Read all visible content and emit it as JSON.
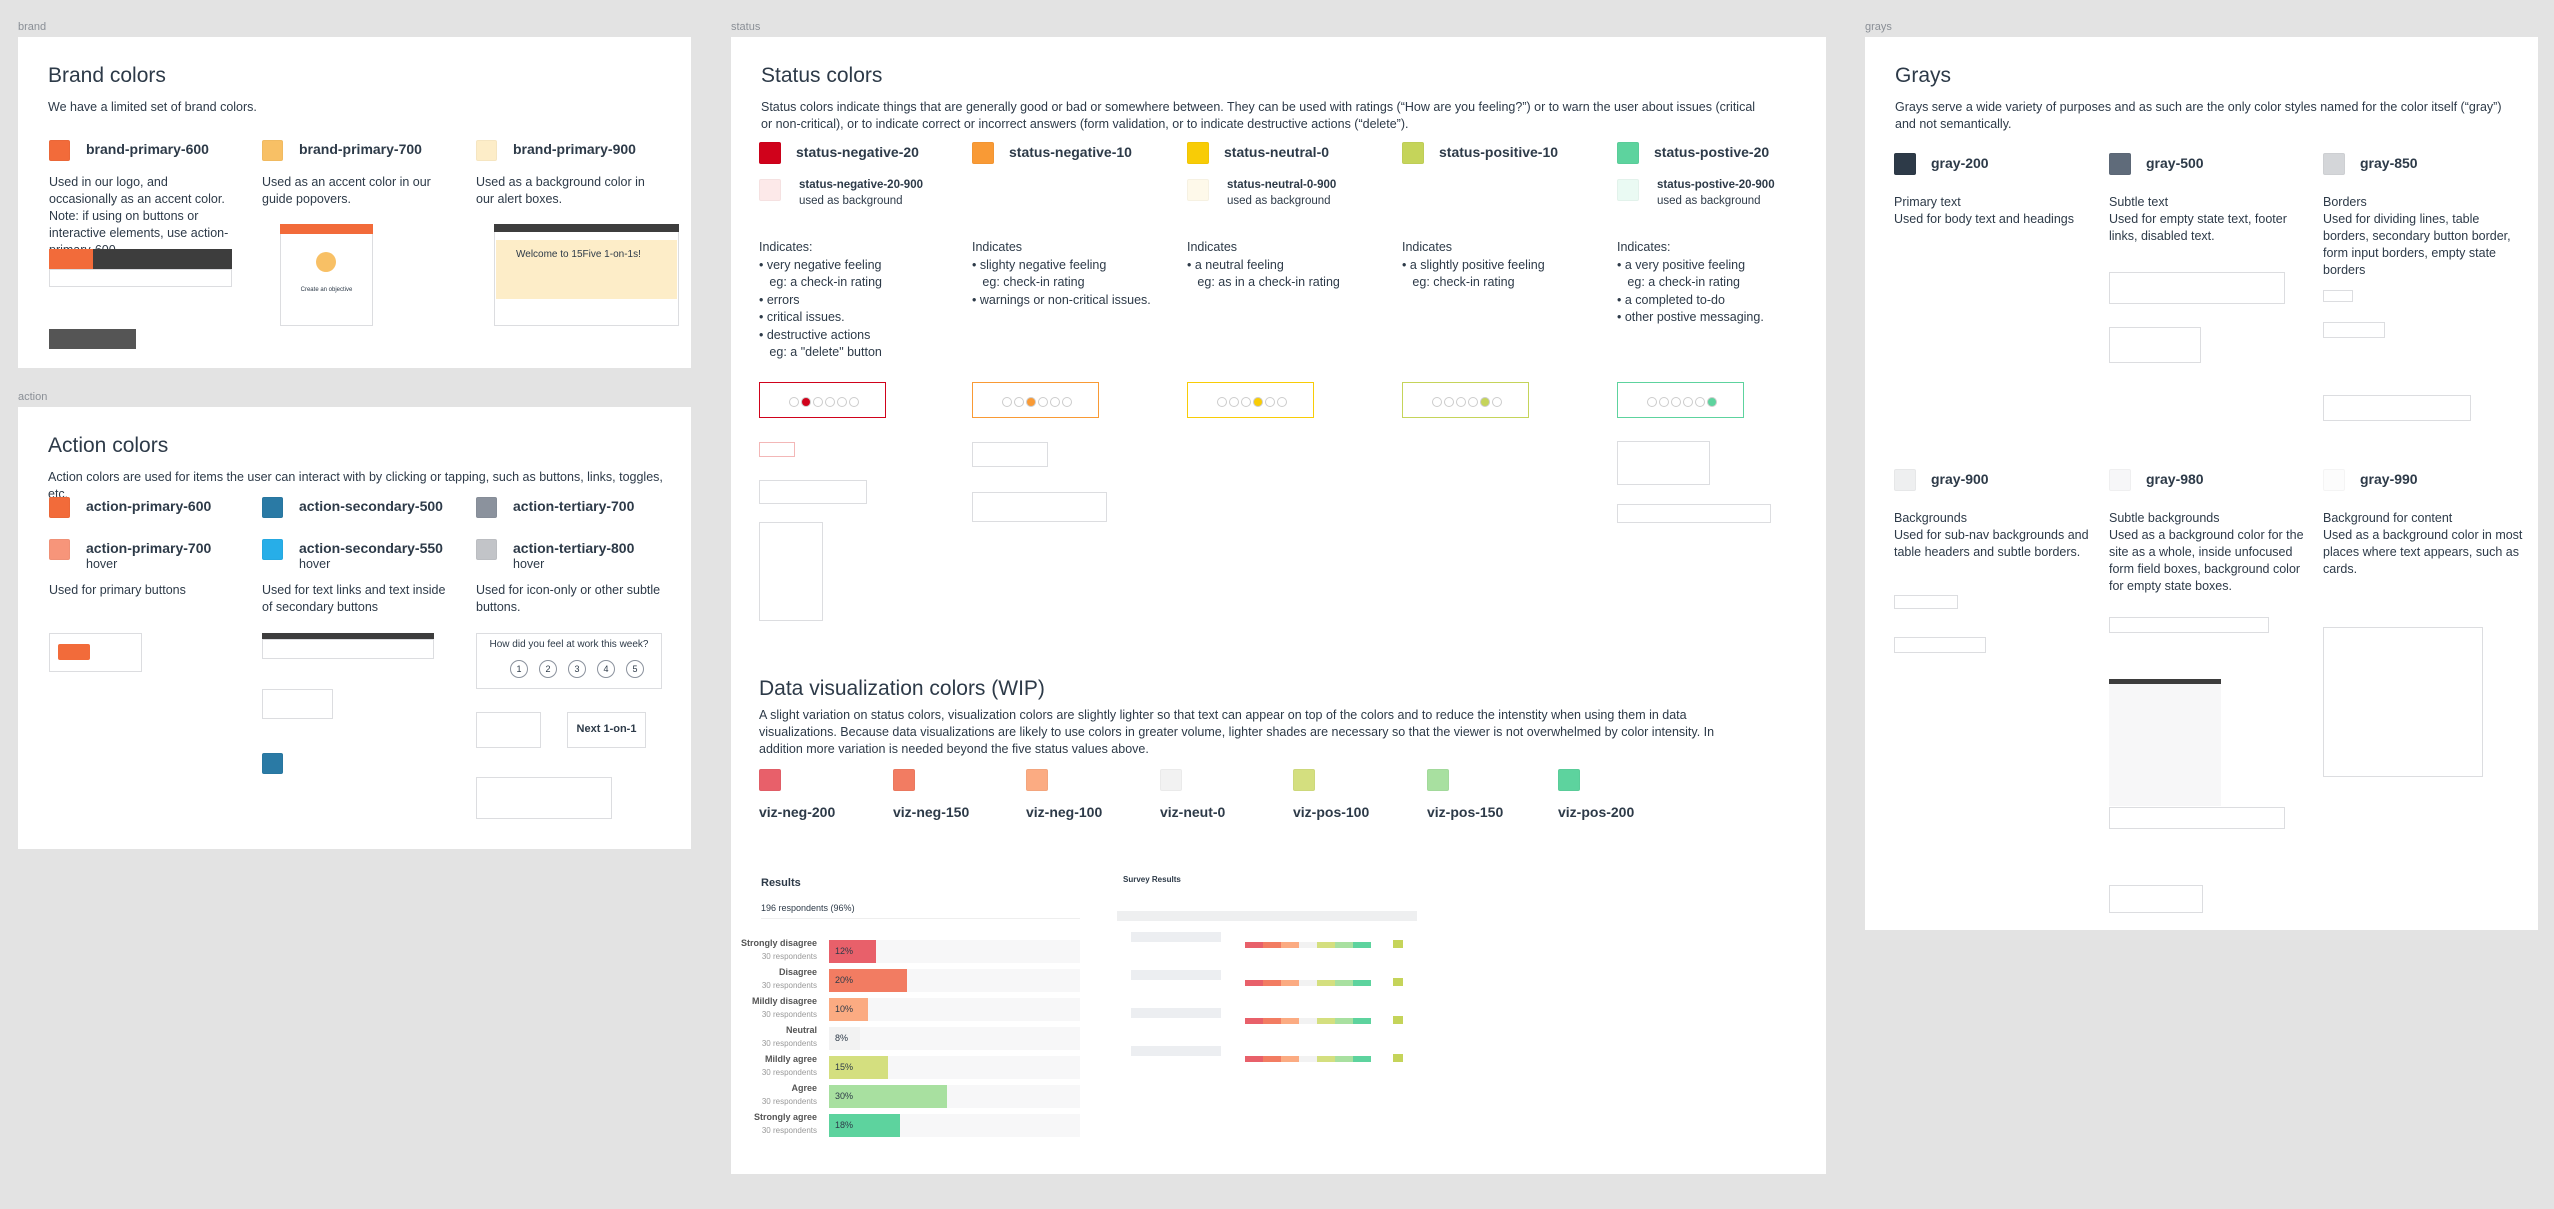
{
  "brand": {
    "label": "brand",
    "title": "Brand colors",
    "intro": "We have a limited set of brand colors.",
    "colors": [
      {
        "name": "brand-primary-600",
        "color": "#f26b3a",
        "text": "Used in our logo, and occasionally as an accent color. Note: if using on buttons or interactive elements, use action-primary-600"
      },
      {
        "name": "brand-primary-700",
        "color": "#f8c065",
        "text": "Used as an accent color in our guide popovers."
      },
      {
        "name": "brand-primary-900",
        "color": "#fdedc8",
        "text": "Used as a background color in our alert boxes."
      }
    ],
    "mockups": [
      "Create an objective",
      "Welcome to 15Five 1-on-1s!"
    ]
  },
  "action": {
    "label": "action",
    "title": "Action colors",
    "intro": "Action colors are used for items the user can interact with by clicking or tapping, such as buttons, links, toggles, etc.",
    "groups": [
      {
        "colors": [
          {
            "name": "action-primary-600",
            "color": "#f26b3a"
          },
          {
            "name": "action-primary-700",
            "state": "hover",
            "color": "#f7957a"
          }
        ],
        "text": "Used for primary buttons"
      },
      {
        "colors": [
          {
            "name": "action-secondary-500",
            "color": "#2a7aa5"
          },
          {
            "name": "action-secondary-550",
            "state": "hover",
            "color": "#27aee8"
          }
        ],
        "text": "Used for text links and text inside of secondary buttons"
      },
      {
        "colors": [
          {
            "name": "action-tertiary-700",
            "color": "#8b929d"
          },
          {
            "name": "action-tertiary-800",
            "state": "hover",
            "color": "#c2c4c8"
          }
        ],
        "text": "Used for icon-only or other subtle buttons."
      }
    ],
    "mockups": {
      "question": "How did you feel at work this week?",
      "scale": [
        1,
        2,
        3,
        4,
        5
      ],
      "button": "Next 1-on-1"
    }
  },
  "status": {
    "label": "status",
    "title": "Status colors",
    "intro": "Status colors indicate things that are generally good or bad or somewhere between. They can be used with ratings (“How are you feeling?”) or to warn the user about issues (critical or non-critical), or to indicate correct or incorrect answers (form validation, or to indicate destructive actions (“delete”).",
    "colors": [
      {
        "name": "status-negative-20",
        "color": "#d0021b",
        "background": {
          "name": "status-negative-20-900",
          "color": "#fde9e9",
          "note": "used as background"
        },
        "indicates": [
          "Indicates:",
          "• very negative feeling",
          "   eg: a check-in rating",
          "• errors",
          "• critical issues.",
          "• destructive actions",
          "   eg: a \"delete\" button"
        ]
      },
      {
        "name": "status-negative-10",
        "color": "#f99a35",
        "indicates": [
          "Indicates",
          "• slighty negative feeling",
          "   eg: check-in rating",
          "• warnings or non-critical issues."
        ]
      },
      {
        "name": "status-neutral-0",
        "color": "#f8cc06",
        "background": {
          "name": "status-neutral-0-900",
          "color": "#fef9ea",
          "note": "used as background"
        },
        "indicates": [
          "Indicates",
          "• a neutral feeling",
          "   eg: as in a check-in rating"
        ]
      },
      {
        "name": "status-positive-10",
        "color": "#c5d45a",
        "indicates": [
          "Indicates",
          "• a slightly positive feeling",
          "   eg: check-in rating"
        ]
      },
      {
        "name": "status-postive-20",
        "color": "#5dd39e",
        "background": {
          "name": "status-postive-20-900",
          "color": "#eafaf3",
          "note": "used as background"
        },
        "indicates": [
          "Indicates:",
          "• a very positive feeling",
          "   eg: a check-in rating",
          "• a completed to-do",
          "• other postive messaging."
        ]
      }
    ]
  },
  "dataviz": {
    "title": "Data visualization colors (WIP)",
    "intro": "A slight variation on status colors, visualization colors are slightly lighter so that text can appear on top of the colors and to reduce the intenstity when using them in data visualizations. Because data visualizations are likely to use colors in greater volume, lighter shades are necessary so that the viewer is not overwhelmed by color intensity. In addition more variation is needed beyond the five status values above.",
    "colors": [
      {
        "name": "viz-neg-200",
        "color": "#e8606a"
      },
      {
        "name": "viz-neg-150",
        "color": "#f27c62"
      },
      {
        "name": "viz-neg-100",
        "color": "#fbab82"
      },
      {
        "name": "viz-neut-0",
        "color": "#f2f2f2"
      },
      {
        "name": "viz-pos-100",
        "color": "#d4df7f"
      },
      {
        "name": "viz-pos-150",
        "color": "#a8e0a0"
      },
      {
        "name": "viz-pos-200",
        "color": "#5dd39e"
      }
    ],
    "results": {
      "type": "bar",
      "title": "Results",
      "respondents": "196 respondents (96%)",
      "categories": [
        "Strongly disagree",
        "Disagree",
        "Mildly disagree",
        "Neutral",
        "Mildly agree",
        "Agree",
        "Strongly agree"
      ],
      "respondent_labels": [
        "30 respondents",
        "30 respondents",
        "30 respondents",
        "30 respondents",
        "30 respondents",
        "30 respondents",
        "30 respondents"
      ],
      "values": [
        12,
        20,
        10,
        8,
        15,
        30,
        18
      ],
      "value_labels": [
        "12%",
        "20%",
        "10%",
        "8%",
        "15%",
        "30%",
        "18%"
      ],
      "xlim": [
        0,
        64
      ]
    },
    "survey": {
      "title": "Survey Results"
    }
  },
  "grays": {
    "label": "grays",
    "title": "Grays",
    "intro": "Grays serve a wide variety of purposes and as such are the only color styles named for the color itself (“gray”) and not semantically.",
    "colors": [
      {
        "name": "gray-200",
        "color": "#2d3a48",
        "heading": "Primary text",
        "text": "Used for body text and headings"
      },
      {
        "name": "gray-500",
        "color": "#5f6b7a",
        "heading": "Subtle text",
        "text": "Used for empty state text, footer links, disabled text."
      },
      {
        "name": "gray-850",
        "color": "#d4d6d9",
        "heading": "Borders",
        "text": "Used for dividing lines, table borders, secondary button border, form input borders, empty state borders"
      },
      {
        "name": "gray-900",
        "color": "#eeeff0",
        "heading": "Backgrounds",
        "text": "Used for sub-nav backgrounds and table headers and subtle borders."
      },
      {
        "name": "gray-980",
        "color": "#f7f7f8",
        "heading": "Subtle backgrounds",
        "text": "Used as a background color for the site as a whole, inside unfocused form field boxes, background color for empty state boxes."
      },
      {
        "name": "gray-990",
        "color": "#fcfcfc",
        "heading": "Background for content",
        "text": "Used as a background color in most places where text appears, such as cards."
      }
    ]
  }
}
